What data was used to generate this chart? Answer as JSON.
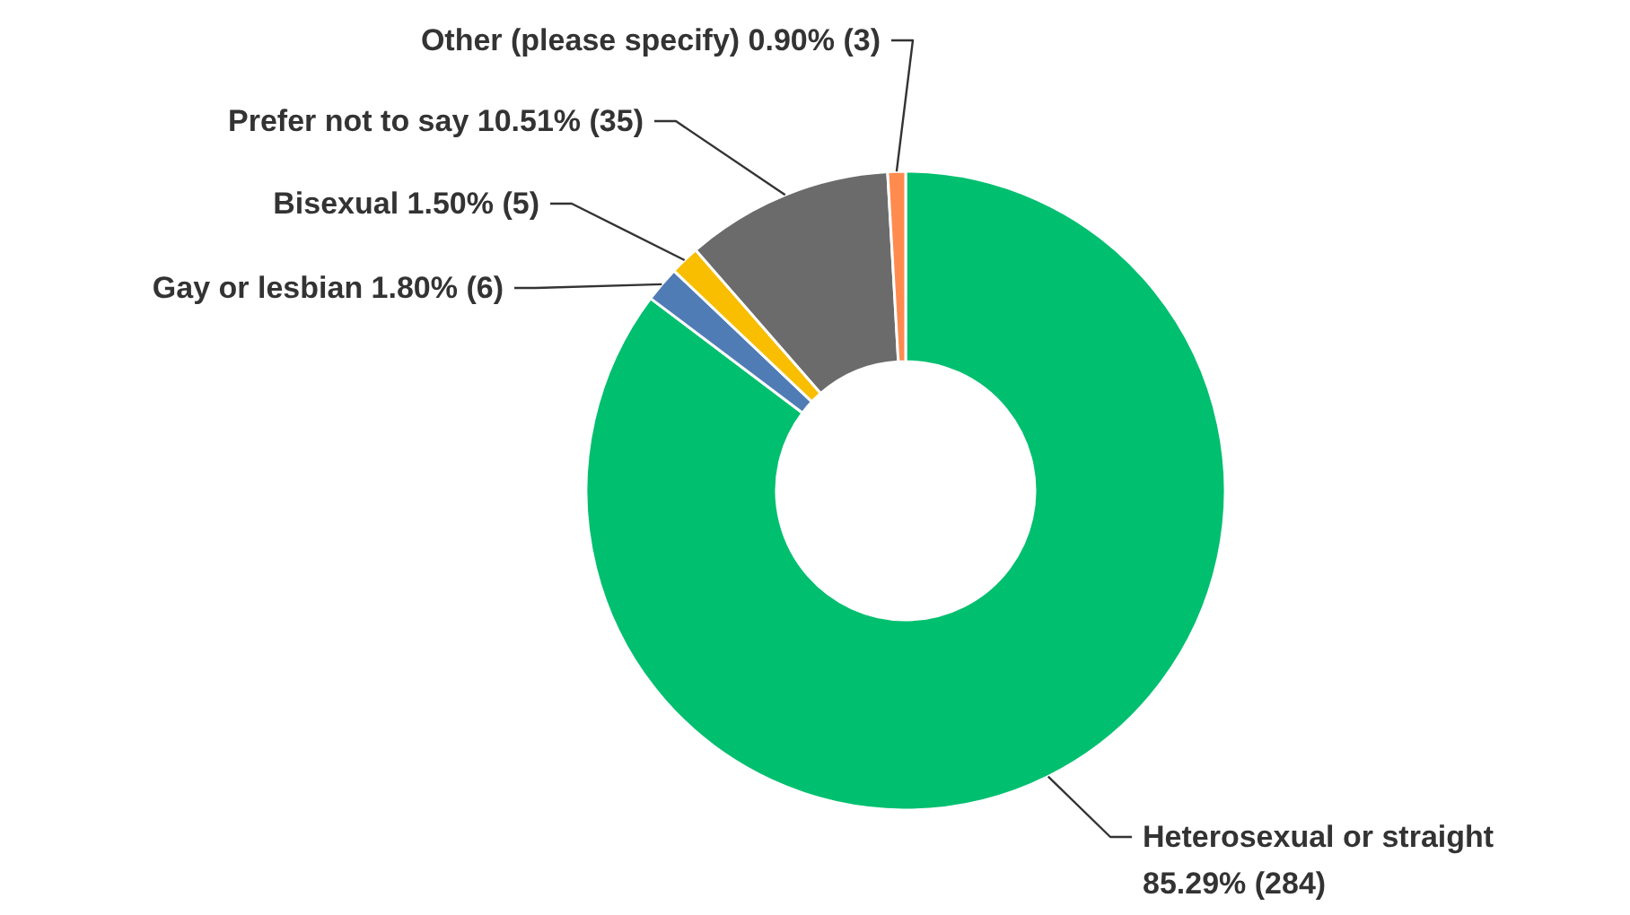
{
  "chart_data": {
    "type": "donut",
    "categories": [
      "Heterosexual or straight",
      "Gay or lesbian",
      "Bisexual",
      "Prefer not to say",
      "Other (please specify)"
    ],
    "values": [
      284,
      6,
      5,
      35,
      3
    ],
    "value_labels": [
      "85.29% (284)",
      "1.80% (6)",
      "1.50% (5)",
      "10.51% (35)",
      "0.90% (3)"
    ],
    "colors": [
      "#00bf6f",
      "#507cb6",
      "#f9be00",
      "#6b6b6b",
      "#ff8b4f"
    ]
  }
}
